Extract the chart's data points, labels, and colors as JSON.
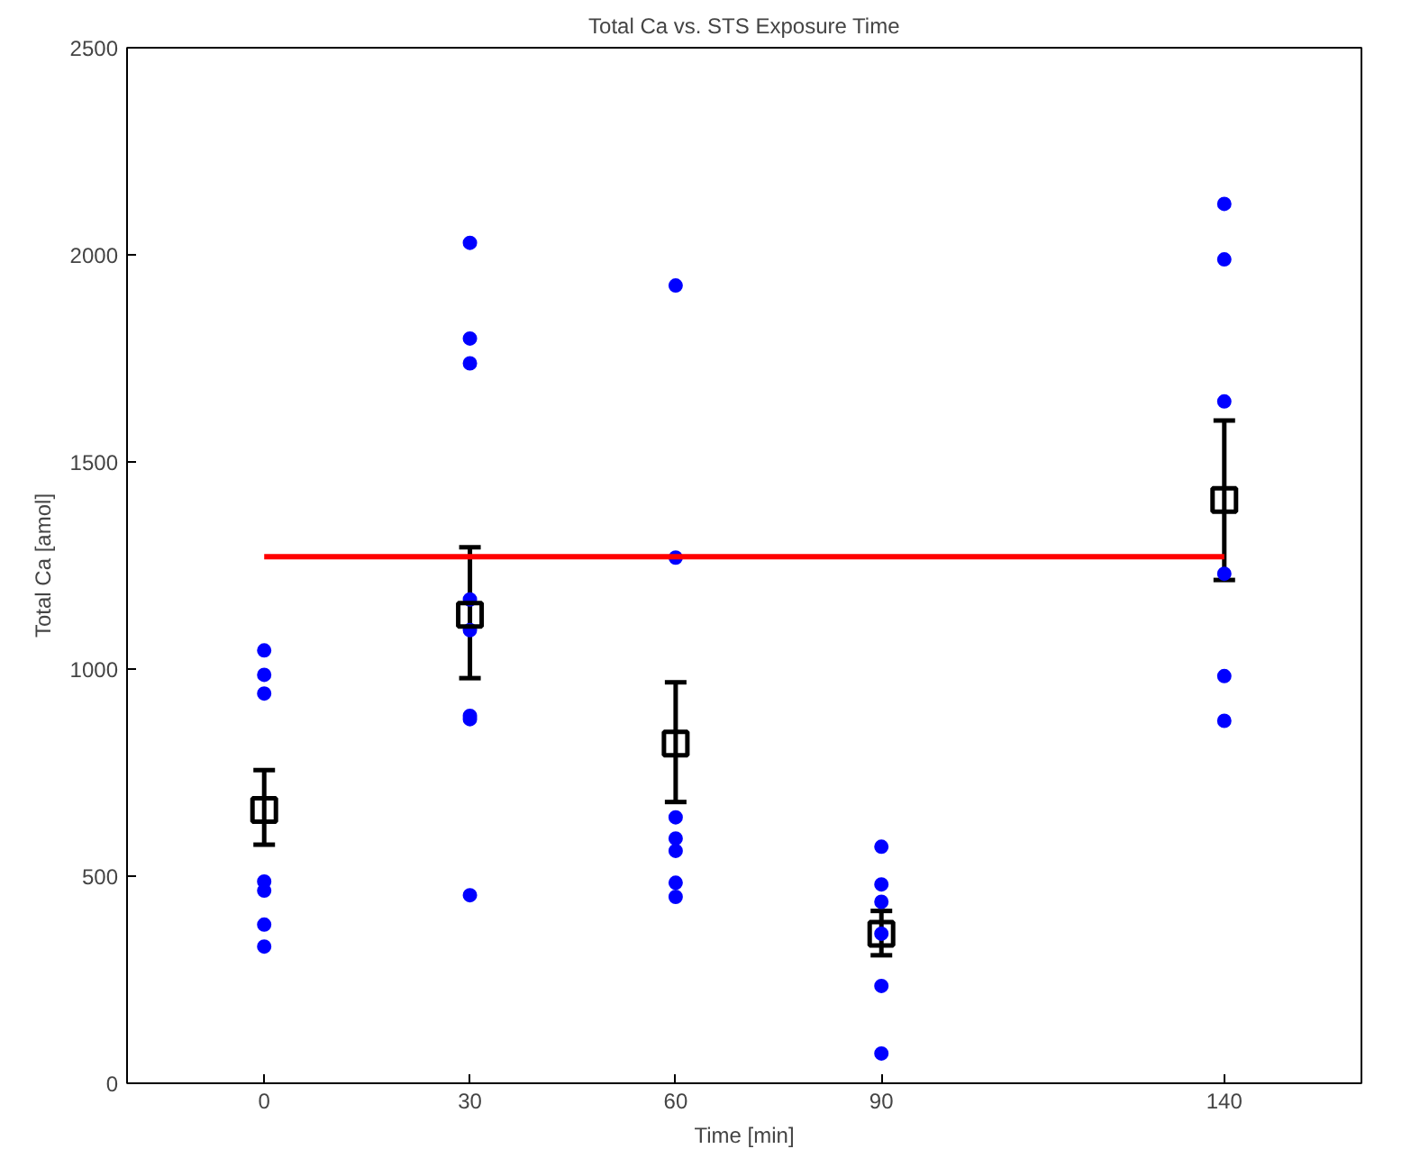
{
  "chart_data": {
    "type": "scatter",
    "title": "Total Ca vs. STS Exposure Time",
    "xlabel": "Time [min]",
    "ylabel": "Total Ca [amol]",
    "xlim": [
      -20,
      160
    ],
    "xticks": [
      0,
      30,
      60,
      90,
      140
    ],
    "ylim": [
      0,
      2500
    ],
    "yticks": [
      0,
      500,
      1000,
      1500,
      2000,
      2500
    ],
    "grid": false,
    "series": [
      {
        "marker": "circle",
        "color": "#0000ff",
        "x": [
          0,
          0,
          0,
          0,
          0,
          0,
          0,
          30,
          30,
          30,
          30,
          30,
          30,
          30,
          30,
          60,
          60,
          60,
          60,
          60,
          60,
          60,
          90,
          90,
          90,
          90,
          90,
          90,
          140,
          140,
          140,
          140,
          140,
          140
        ],
        "values": [
          1045,
          986,
          941,
          487,
          465,
          383,
          330,
          2029,
          1798,
          1738,
          1168,
          1094,
          887,
          879,
          454,
          1926,
          1269,
          642,
          591,
          561,
          484,
          450,
          571,
          480,
          438,
          361,
          235,
          72,
          2123,
          1989,
          1646,
          1230,
          983,
          875
        ]
      },
      {
        "type": "line",
        "marker": "none",
        "line_style": "solid",
        "color": "#ff0000",
        "x": [
          0,
          140
        ],
        "values": [
          1271,
          1271
        ]
      },
      {
        "marker": "square",
        "color": "#000000",
        "x": [
          0,
          30,
          60,
          90,
          140
        ],
        "values": [
          660,
          1131,
          820,
          361,
          1408
        ],
        "errors": [
          [
            576,
            756
          ],
          [
            978,
            1294
          ],
          [
            679,
            968
          ],
          [
            309,
            416
          ],
          [
            1215,
            1600
          ]
        ]
      }
    ]
  }
}
